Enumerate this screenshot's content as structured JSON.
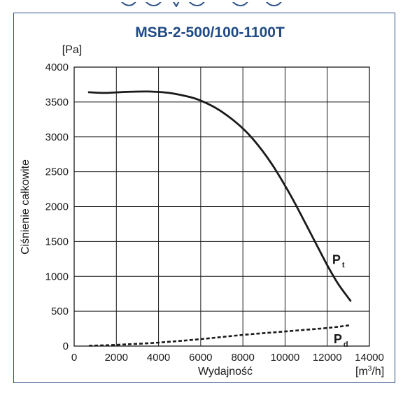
{
  "chart_data": {
    "type": "line",
    "title": "MSB-2-500/100-1100T",
    "ylabel": "Ciśnienie całkowite",
    "yunit": "[Pa]",
    "xlabel": "Wydajność",
    "xunit_base": "[m",
    "xunit_sup": "3",
    "xunit_tail": "/h]",
    "xlim": [
      0,
      14000
    ],
    "ylim": [
      0,
      4000
    ],
    "xticks": [
      0,
      2000,
      4000,
      6000,
      8000,
      10000,
      12000,
      14000
    ],
    "yticks": [
      0,
      500,
      1000,
      1500,
      2000,
      2500,
      3000,
      3500,
      4000
    ],
    "grid": true,
    "series": [
      {
        "name": "Pt",
        "label_main": "P",
        "label_sub": "t",
        "style": "solid",
        "x": [
          700,
          1500,
          2500,
          3500,
          4500,
          5500,
          6000,
          6500,
          7000,
          7500,
          8000,
          8500,
          9000,
          9500,
          10000,
          10500,
          11000,
          11500,
          12000,
          12500,
          13100
        ],
        "y": [
          3640,
          3630,
          3645,
          3650,
          3630,
          3570,
          3520,
          3450,
          3360,
          3250,
          3120,
          2960,
          2770,
          2550,
          2300,
          2030,
          1740,
          1450,
          1160,
          900,
          650
        ]
      },
      {
        "name": "Pd",
        "label_main": "P",
        "label_sub": "d",
        "style": "dashed",
        "x": [
          700,
          2000,
          4000,
          6000,
          8000,
          10000,
          12000,
          13100
        ],
        "y": [
          5,
          18,
          50,
          100,
          160,
          210,
          260,
          300
        ]
      }
    ]
  },
  "colors": {
    "title": "#1f4a86",
    "frame": "#2a4f86",
    "curve": "#1a1a1a",
    "grid": "#1a1a1a"
  }
}
